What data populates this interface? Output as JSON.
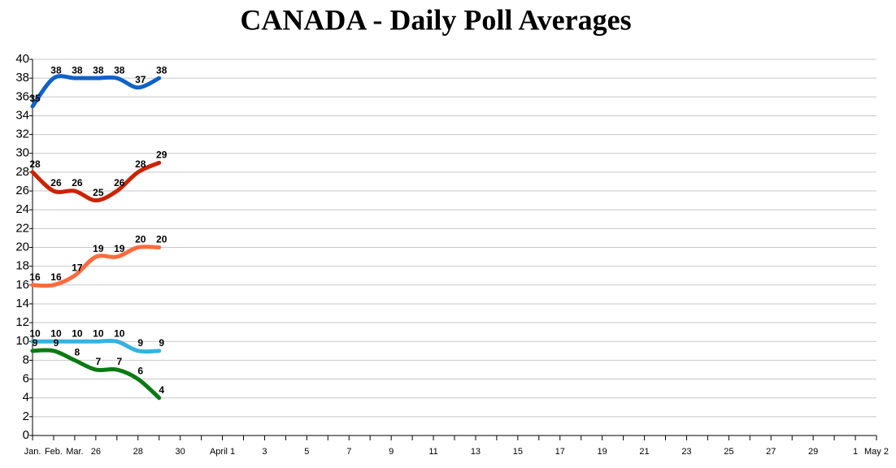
{
  "chart_data": {
    "type": "line",
    "title": "CANADA - Daily Poll Averages",
    "categories": [
      "Jan.",
      "Feb.",
      "Mar.",
      "26",
      null,
      "28",
      null,
      "30",
      null,
      "April 1",
      null,
      "3",
      null,
      "5",
      null,
      "7",
      null,
      "9",
      null,
      "11",
      null,
      "13",
      null,
      "15",
      null,
      "17",
      null,
      "19",
      null,
      "21",
      null,
      "23",
      null,
      "25",
      null,
      "27",
      null,
      "29",
      null,
      "1",
      "May 2"
    ],
    "series": [
      {
        "color": "#0f62c8",
        "values": [
          35,
          38,
          38,
          38,
          38,
          37,
          38,
          null,
          null,
          null,
          null,
          null,
          null,
          null,
          null,
          null,
          null,
          null,
          null,
          null,
          null,
          null,
          null,
          null,
          null,
          null,
          null,
          null,
          null,
          null,
          null,
          null,
          null,
          null,
          null,
          null,
          null,
          null,
          null,
          null,
          null
        ]
      },
      {
        "color": "#cc2200",
        "values": [
          28,
          26,
          26,
          25,
          26,
          28,
          29,
          null,
          null,
          null,
          null,
          null,
          null,
          null,
          null,
          null,
          null,
          null,
          null,
          null,
          null,
          null,
          null,
          null,
          null,
          null,
          null,
          null,
          null,
          null,
          null,
          null,
          null,
          null,
          null,
          null,
          null,
          null,
          null,
          null,
          null
        ]
      },
      {
        "color": "#ff6a3d",
        "values": [
          16,
          16,
          17,
          19,
          19,
          20,
          20,
          null,
          null,
          null,
          null,
          null,
          null,
          null,
          null,
          null,
          null,
          null,
          null,
          null,
          null,
          null,
          null,
          null,
          null,
          null,
          null,
          null,
          null,
          null,
          null,
          null,
          null,
          null,
          null,
          null,
          null,
          null,
          null,
          null,
          null
        ]
      },
      {
        "color": "#33b3e0",
        "values": [
          10,
          10,
          10,
          10,
          10,
          9,
          9,
          null,
          null,
          null,
          null,
          null,
          null,
          null,
          null,
          null,
          null,
          null,
          null,
          null,
          null,
          null,
          null,
          null,
          null,
          null,
          null,
          null,
          null,
          null,
          null,
          null,
          null,
          null,
          null,
          null,
          null,
          null,
          null,
          null,
          null
        ]
      },
      {
        "color": "#0a7a12",
        "values": [
          9,
          9,
          8,
          7,
          7,
          6,
          4,
          null,
          null,
          null,
          null,
          null,
          null,
          null,
          null,
          null,
          null,
          null,
          null,
          null,
          null,
          null,
          null,
          null,
          null,
          null,
          null,
          null,
          null,
          null,
          null,
          null,
          null,
          null,
          null,
          null,
          null,
          null,
          null,
          null,
          null
        ]
      }
    ],
    "ylim": [
      0,
      40
    ],
    "yticks": [
      0,
      2,
      4,
      6,
      8,
      10,
      12,
      14,
      16,
      18,
      20,
      22,
      24,
      26,
      28,
      30,
      32,
      34,
      36,
      38,
      40
    ],
    "grid": true
  }
}
